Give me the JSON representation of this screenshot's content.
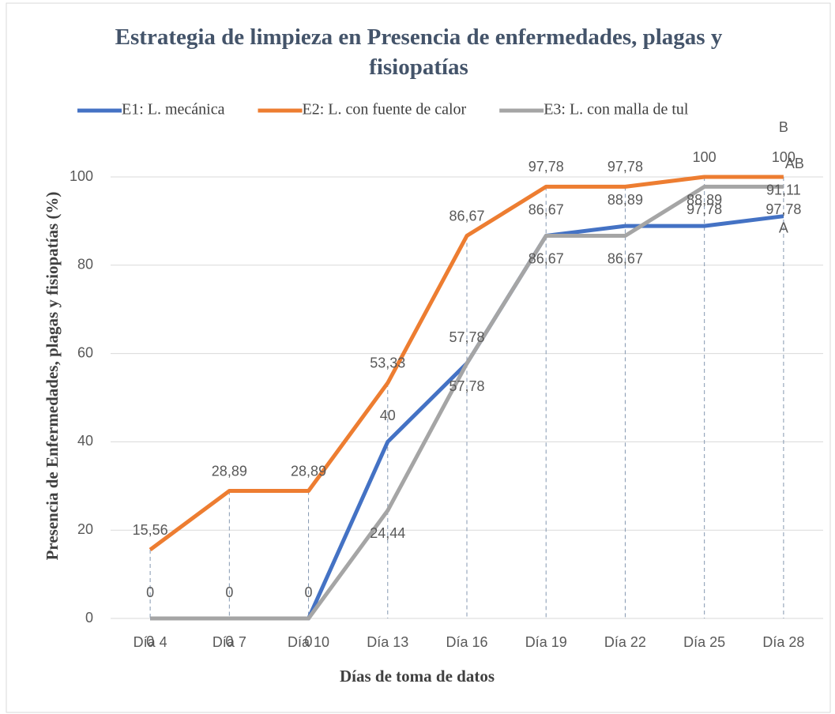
{
  "chart_data": {
    "type": "line",
    "title": "Estrategia de limpieza en Presencia de enfermedades, plagas y fisiopatías",
    "x_label": "Días de toma de datos",
    "y_label": "Presencia de Enfermedades, plagas y fisiopatías  (%)",
    "categories": [
      "Día 4",
      "Día 7",
      "Día 10",
      "Día 13",
      "Día 16",
      "Día 19",
      "Día 22",
      "Día 25",
      "Día 28"
    ],
    "series": [
      {
        "name": "E1: L. mecánica",
        "color": "#4472c4",
        "values": [
          0,
          0,
          0,
          40,
          57.78,
          86.67,
          88.89,
          88.89,
          91.11
        ],
        "value_labels": [
          "0",
          "0",
          "0",
          "40",
          "57,78",
          "86,67",
          "88,89",
          "88,89",
          "91,11"
        ]
      },
      {
        "name": "E2: L. con fuente de calor",
        "color": "#ed7d31",
        "values": [
          15.56,
          28.89,
          28.89,
          53.33,
          86.67,
          97.78,
          97.78,
          100,
          100
        ],
        "value_labels": [
          "15,56",
          "28,89",
          "28,89",
          "53,33",
          "86,67",
          "97,78",
          "97,78",
          "100",
          "100"
        ]
      },
      {
        "name": "E3: L. con malla de tul",
        "color": "#a5a5a5",
        "values": [
          0,
          0,
          0,
          24.44,
          57.78,
          86.67,
          86.67,
          97.78,
          97.78
        ],
        "value_labels": [
          "0",
          "0",
          "0",
          "24,44",
          "57,78",
          "86,67",
          "86,67",
          "97,78",
          "97,78"
        ]
      }
    ],
    "annotations": [
      "B",
      "AB",
      "A"
    ],
    "ylim": [
      0,
      100
    ],
    "yticks": [
      0,
      20,
      40,
      60,
      80,
      100
    ],
    "grid": true,
    "drop_lines": true,
    "legend": "top"
  }
}
